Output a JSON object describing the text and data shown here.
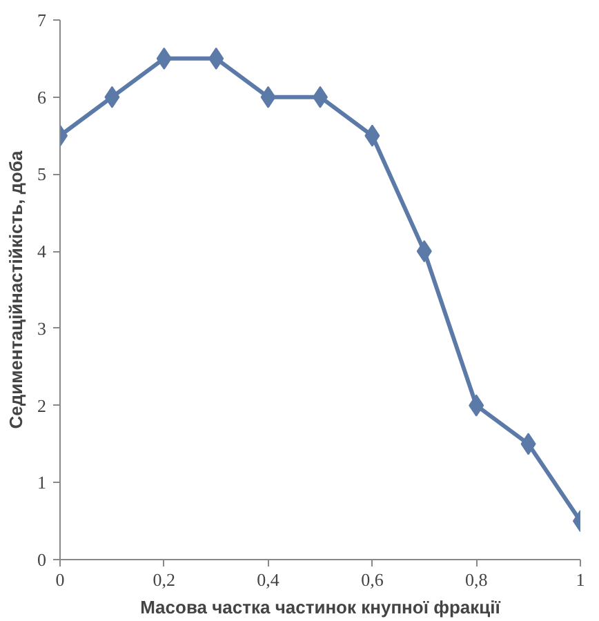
{
  "chart_data": {
    "type": "line",
    "xlabel": "Масова частка частинок кнупної фракції",
    "ylabel": "Седиментаційнастійкість, доба",
    "x": [
      0,
      0.1,
      0.2,
      0.3,
      0.4,
      0.5,
      0.6,
      0.7,
      0.8,
      0.9,
      1
    ],
    "series": [
      {
        "color": "#5b7aa8",
        "values": [
          5.5,
          6,
          6.5,
          6.5,
          6,
          6,
          5.5,
          4,
          2,
          1.5,
          0.5
        ]
      }
    ],
    "xlim": [
      0,
      1
    ],
    "ylim": [
      0,
      7
    ],
    "xticks": [
      0,
      {
        "value": 0.2,
        "label": "0,2"
      },
      {
        "value": 0.4,
        "label": "0,4"
      },
      {
        "value": 0.6,
        "label": "0,6"
      },
      {
        "value": 0.8,
        "label": "0,8"
      },
      1
    ],
    "yticks": [
      0,
      1,
      2,
      3,
      4,
      5,
      6,
      7
    ],
    "marker": "diamond",
    "line_style": "solid",
    "grid": false
  }
}
